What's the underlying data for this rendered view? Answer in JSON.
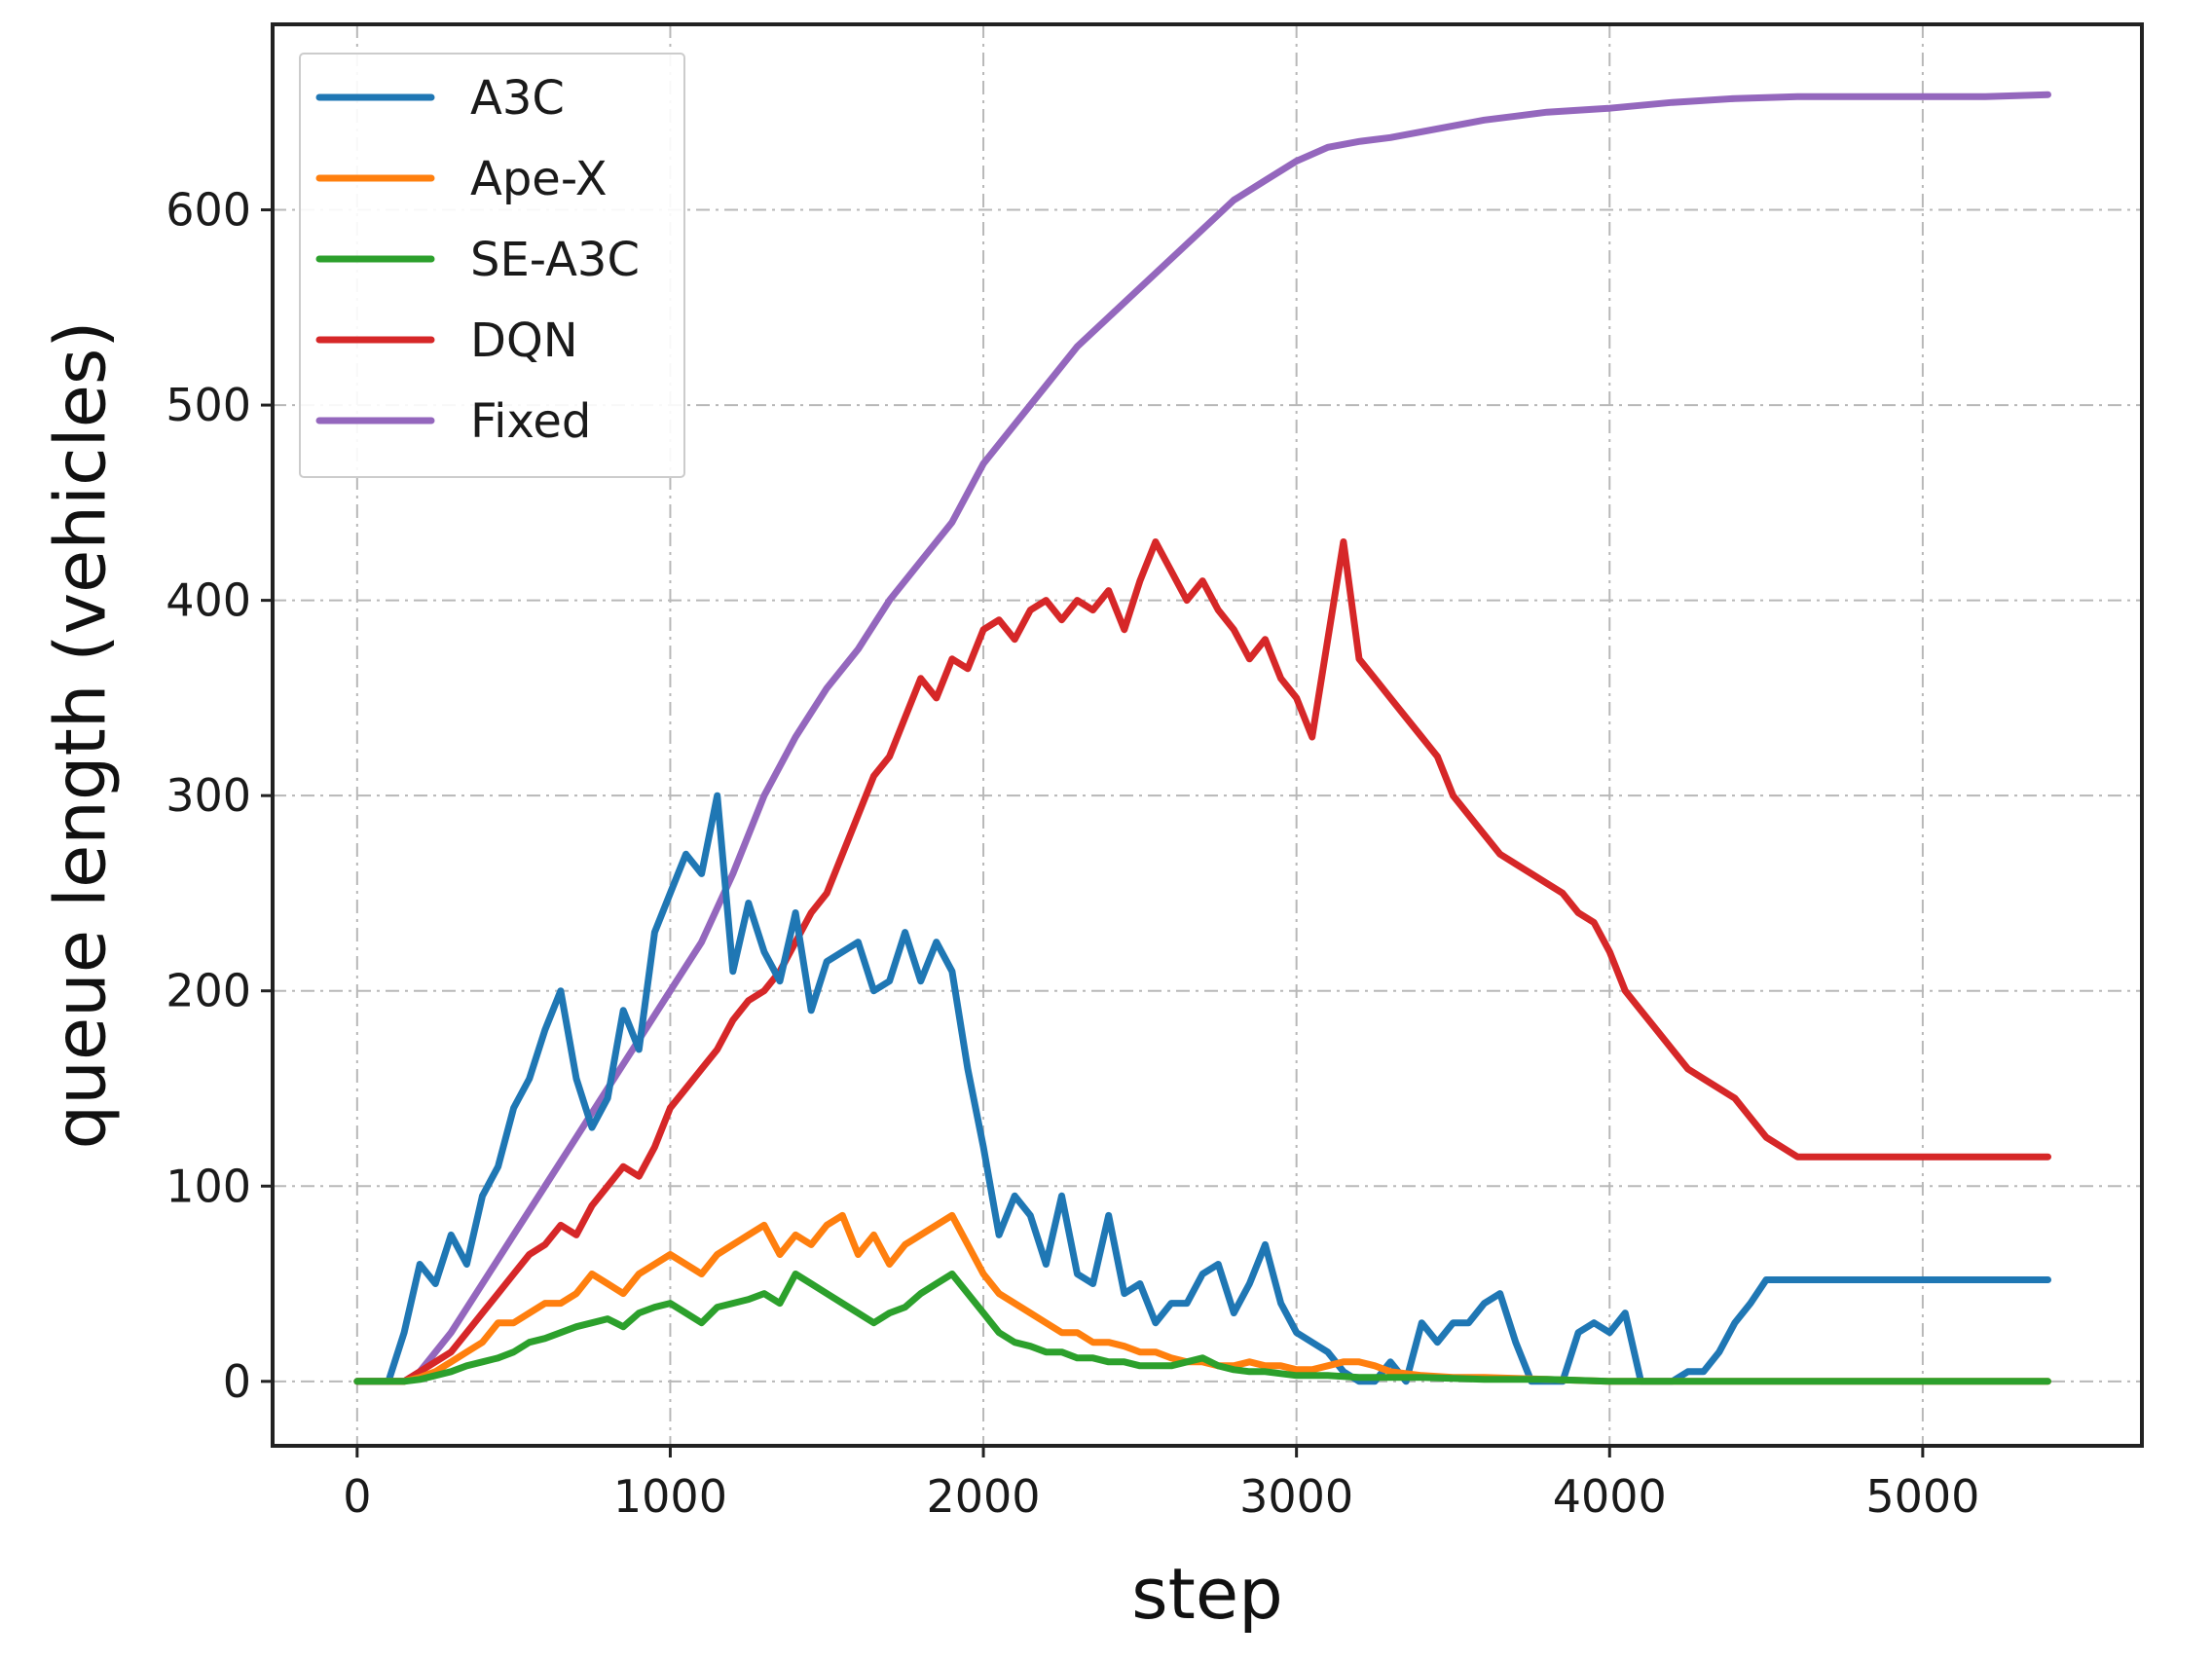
{
  "chart_data": {
    "type": "line",
    "title": "",
    "xlabel": "step",
    "ylabel": "queue length (vehicles)",
    "xlim": [
      -270,
      5700
    ],
    "ylim": [
      -33,
      695
    ],
    "xticks": [
      0,
      1000,
      2000,
      3000,
      4000,
      5000
    ],
    "yticks": [
      0,
      100,
      200,
      300,
      400,
      500,
      600
    ],
    "grid": true,
    "legend_position": "top-left",
    "series": [
      {
        "name": "A3C",
        "color": "#1f77b4",
        "x": [
          0,
          100,
          150,
          200,
          250,
          300,
          350,
          400,
          450,
          500,
          550,
          600,
          650,
          700,
          750,
          800,
          850,
          900,
          950,
          1000,
          1050,
          1100,
          1150,
          1200,
          1250,
          1300,
          1350,
          1400,
          1450,
          1500,
          1550,
          1600,
          1650,
          1700,
          1750,
          1800,
          1850,
          1900,
          1950,
          2000,
          2050,
          2100,
          2150,
          2200,
          2250,
          2300,
          2350,
          2400,
          2450,
          2500,
          2550,
          2600,
          2650,
          2700,
          2750,
          2800,
          2850,
          2900,
          2950,
          3000,
          3050,
          3100,
          3150,
          3200,
          3250,
          3300,
          3350,
          3400,
          3450,
          3500,
          3550,
          3600,
          3650,
          3700,
          3750,
          3800,
          3850,
          3900,
          3950,
          4000,
          4050,
          4100,
          4150,
          4200,
          4250,
          4300,
          4350,
          4400,
          4450,
          4500,
          4600,
          4800,
          5000,
          5200,
          5400
        ],
        "y": [
          0,
          0,
          25,
          60,
          50,
          75,
          60,
          95,
          110,
          140,
          155,
          180,
          200,
          155,
          130,
          145,
          190,
          170,
          230,
          250,
          270,
          260,
          300,
          210,
          245,
          220,
          205,
          240,
          190,
          215,
          220,
          225,
          200,
          205,
          230,
          205,
          225,
          210,
          160,
          120,
          75,
          95,
          85,
          60,
          95,
          55,
          50,
          85,
          45,
          50,
          30,
          40,
          40,
          55,
          60,
          35,
          50,
          70,
          40,
          25,
          20,
          15,
          5,
          0,
          0,
          10,
          0,
          30,
          20,
          30,
          30,
          40,
          45,
          20,
          0,
          0,
          0,
          25,
          30,
          25,
          35,
          0,
          0,
          0,
          5,
          5,
          15,
          30,
          40,
          52,
          52,
          52,
          52,
          52,
          52
        ]
      },
      {
        "name": "Ape-X",
        "color": "#ff7f0e",
        "x": [
          0,
          150,
          200,
          250,
          300,
          350,
          400,
          450,
          500,
          550,
          600,
          650,
          700,
          750,
          800,
          850,
          900,
          950,
          1000,
          1050,
          1100,
          1150,
          1200,
          1250,
          1300,
          1350,
          1400,
          1450,
          1500,
          1550,
          1600,
          1650,
          1700,
          1750,
          1800,
          1850,
          1900,
          1950,
          2000,
          2050,
          2100,
          2150,
          2200,
          2250,
          2300,
          2350,
          2400,
          2450,
          2500,
          2550,
          2600,
          2650,
          2700,
          2750,
          2800,
          2850,
          2900,
          2950,
          3000,
          3050,
          3100,
          3150,
          3200,
          3250,
          3300,
          3400,
          3500,
          3600,
          3800,
          4000,
          4200,
          4400,
          4600,
          4800,
          5000,
          5200,
          5400
        ],
        "y": [
          0,
          0,
          2,
          5,
          10,
          15,
          20,
          30,
          30,
          35,
          40,
          40,
          45,
          55,
          50,
          45,
          55,
          60,
          65,
          60,
          55,
          65,
          70,
          75,
          80,
          65,
          75,
          70,
          80,
          85,
          65,
          75,
          60,
          70,
          75,
          80,
          85,
          70,
          55,
          45,
          40,
          35,
          30,
          25,
          25,
          20,
          20,
          18,
          15,
          15,
          12,
          10,
          10,
          8,
          8,
          10,
          8,
          8,
          6,
          6,
          8,
          10,
          10,
          8,
          5,
          3,
          2,
          2,
          1,
          0,
          0,
          0,
          0,
          0,
          0,
          0,
          0
        ]
      },
      {
        "name": "SE-A3C",
        "color": "#2ca02c",
        "x": [
          0,
          150,
          200,
          250,
          300,
          350,
          400,
          450,
          500,
          550,
          600,
          650,
          700,
          750,
          800,
          850,
          900,
          950,
          1000,
          1050,
          1100,
          1150,
          1200,
          1250,
          1300,
          1350,
          1400,
          1450,
          1500,
          1550,
          1600,
          1650,
          1700,
          1750,
          1800,
          1850,
          1900,
          1950,
          2000,
          2050,
          2100,
          2150,
          2200,
          2250,
          2300,
          2350,
          2400,
          2450,
          2500,
          2550,
          2600,
          2650,
          2700,
          2750,
          2800,
          2850,
          2900,
          2950,
          3000,
          3100,
          3200,
          3300,
          3400,
          3600,
          3800,
          4000,
          4200,
          4400,
          4600,
          4800,
          5000,
          5200,
          5400
        ],
        "y": [
          0,
          0,
          1,
          3,
          5,
          8,
          10,
          12,
          15,
          20,
          22,
          25,
          28,
          30,
          32,
          28,
          35,
          38,
          40,
          35,
          30,
          38,
          40,
          42,
          45,
          40,
          55,
          50,
          45,
          40,
          35,
          30,
          35,
          38,
          45,
          50,
          55,
          45,
          35,
          25,
          20,
          18,
          15,
          15,
          12,
          12,
          10,
          10,
          8,
          8,
          8,
          10,
          12,
          8,
          6,
          5,
          5,
          4,
          3,
          3,
          2,
          2,
          2,
          1,
          1,
          0,
          0,
          0,
          0,
          0,
          0,
          0,
          0
        ]
      },
      {
        "name": "DQN",
        "color": "#d62728",
        "x": [
          0,
          150,
          200,
          250,
          300,
          350,
          400,
          450,
          500,
          550,
          600,
          650,
          700,
          750,
          800,
          850,
          900,
          950,
          1000,
          1050,
          1100,
          1150,
          1200,
          1250,
          1300,
          1350,
          1400,
          1450,
          1500,
          1550,
          1600,
          1650,
          1700,
          1750,
          1800,
          1850,
          1900,
          1950,
          2000,
          2050,
          2100,
          2150,
          2200,
          2250,
          2300,
          2350,
          2400,
          2450,
          2500,
          2550,
          2600,
          2650,
          2700,
          2750,
          2800,
          2850,
          2900,
          2950,
          3000,
          3050,
          3100,
          3150,
          3200,
          3250,
          3300,
          3350,
          3400,
          3450,
          3500,
          3550,
          3600,
          3650,
          3700,
          3750,
          3800,
          3850,
          3900,
          3950,
          4000,
          4050,
          4100,
          4150,
          4200,
          4250,
          4300,
          4350,
          4400,
          4450,
          4500,
          4550,
          4600,
          4800,
          5000,
          5200,
          5400
        ],
        "y": [
          0,
          0,
          5,
          10,
          15,
          25,
          35,
          45,
          55,
          65,
          70,
          80,
          75,
          90,
          100,
          110,
          105,
          120,
          140,
          150,
          160,
          170,
          185,
          195,
          200,
          210,
          225,
          240,
          250,
          270,
          290,
          310,
          320,
          340,
          360,
          350,
          370,
          365,
          385,
          390,
          380,
          395,
          400,
          390,
          400,
          395,
          405,
          385,
          410,
          430,
          415,
          400,
          410,
          395,
          385,
          370,
          380,
          360,
          350,
          330,
          380,
          430,
          370,
          360,
          350,
          340,
          330,
          320,
          300,
          290,
          280,
          270,
          265,
          260,
          255,
          250,
          240,
          235,
          220,
          200,
          190,
          180,
          170,
          160,
          155,
          150,
          145,
          135,
          125,
          120,
          115,
          115,
          115,
          115,
          115
        ]
      },
      {
        "name": "Fixed",
        "color": "#9467bd",
        "x": [
          0,
          150,
          200,
          300,
          400,
          500,
          600,
          700,
          800,
          900,
          1000,
          1100,
          1200,
          1300,
          1400,
          1500,
          1600,
          1700,
          1800,
          1900,
          2000,
          2100,
          2200,
          2300,
          2400,
          2500,
          2600,
          2700,
          2800,
          2900,
          3000,
          3100,
          3200,
          3300,
          3400,
          3500,
          3600,
          3700,
          3800,
          4000,
          4200,
          4400,
          4600,
          4800,
          5000,
          5200,
          5400
        ],
        "y": [
          0,
          0,
          5,
          25,
          50,
          75,
          100,
          125,
          150,
          175,
          200,
          225,
          260,
          300,
          330,
          355,
          375,
          400,
          420,
          440,
          470,
          490,
          510,
          530,
          545,
          560,
          575,
          590,
          605,
          615,
          625,
          632,
          635,
          637,
          640,
          643,
          646,
          648,
          650,
          652,
          655,
          657,
          658,
          658,
          658,
          658,
          659
        ]
      }
    ]
  }
}
